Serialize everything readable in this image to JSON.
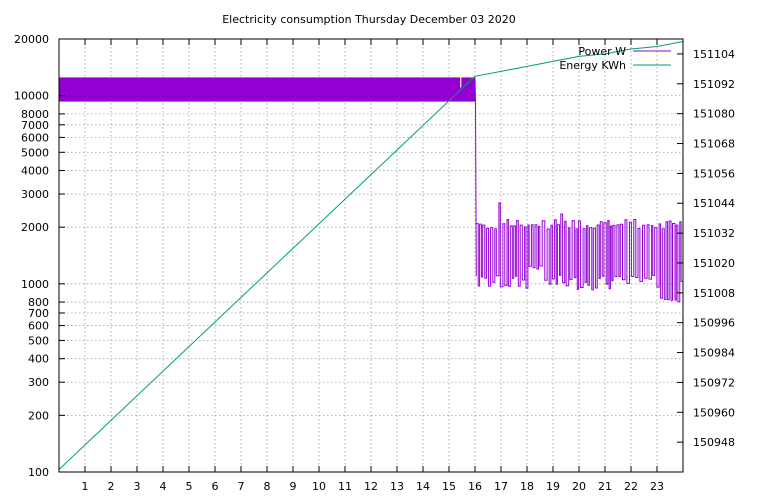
{
  "chart_data": {
    "type": "line",
    "title": "Electricity consumption Thursday December 03 2020",
    "xlabel": "",
    "ylabel": "",
    "x_ticks": [
      "1",
      "2",
      "3",
      "4",
      "5",
      "6",
      "7",
      "8",
      "9",
      "10",
      "11",
      "12",
      "13",
      "14",
      "15",
      "16",
      "17",
      "18",
      "19",
      "20",
      "21",
      "22",
      "23"
    ],
    "xlim": [
      0,
      24
    ],
    "y_left": {
      "scale": "log",
      "lim": [
        100,
        20000
      ],
      "ticks": [
        "100",
        "200",
        "300",
        "400",
        "500",
        "600",
        "700",
        "800",
        "1000",
        "2000",
        "3000",
        "4000",
        "5000",
        "6000",
        "7000",
        "8000",
        "10000",
        "20000"
      ],
      "tick_values": [
        100,
        200,
        300,
        400,
        500,
        600,
        700,
        800,
        1000,
        2000,
        3000,
        4000,
        5000,
        6000,
        7000,
        8000,
        10000,
        20000
      ]
    },
    "y_right": {
      "scale": "linear",
      "lim": [
        150936,
        151110
      ],
      "ticks": [
        "150948",
        "150960",
        "150972",
        "150984",
        "150996",
        "151008",
        "151020",
        "151032",
        "151044",
        "151056",
        "151068",
        "151080",
        "151092",
        "151104"
      ],
      "tick_values": [
        150948,
        150960,
        150972,
        150984,
        150996,
        151008,
        151020,
        151032,
        151044,
        151056,
        151068,
        151080,
        151092,
        151104
      ]
    },
    "grid": true,
    "legend_position": "top-right",
    "series": [
      {
        "name": "Power W",
        "axis": "left",
        "color": "#9400d3",
        "segments": [
          {
            "x_start": 0.0,
            "x_end": 16.0,
            "low": 9300,
            "high": 12500,
            "note_dip_at": 15.45
          },
          {
            "x_start": 16.0,
            "x_end": 24.0,
            "low": 950,
            "high": 2150,
            "tail_low": 800
          }
        ],
        "points": [
          [
            0.0,
            12500
          ],
          [
            16.0,
            12500
          ],
          [
            16.02,
            9300
          ],
          [
            16.05,
            1100
          ],
          [
            16.3,
            2100
          ],
          [
            17.0,
            2700
          ],
          [
            18.0,
            2100
          ],
          [
            19.0,
            2300
          ],
          [
            20.0,
            2100
          ],
          [
            21.0,
            950
          ],
          [
            22.0,
            2200
          ],
          [
            23.0,
            2200
          ],
          [
            23.2,
            800
          ],
          [
            24.0,
            1950
          ]
        ]
      },
      {
        "name": "Energy KWh",
        "axis": "right",
        "color": "#009e73",
        "points": [
          [
            0.0,
            150937
          ],
          [
            16.0,
            151095
          ],
          [
            17.0,
            151097
          ],
          [
            18.0,
            151099
          ],
          [
            19.0,
            151101
          ],
          [
            20.0,
            151103
          ],
          [
            21.0,
            151104
          ],
          [
            22.0,
            151106
          ],
          [
            23.0,
            151107
          ],
          [
            24.0,
            151109
          ]
        ]
      }
    ]
  }
}
